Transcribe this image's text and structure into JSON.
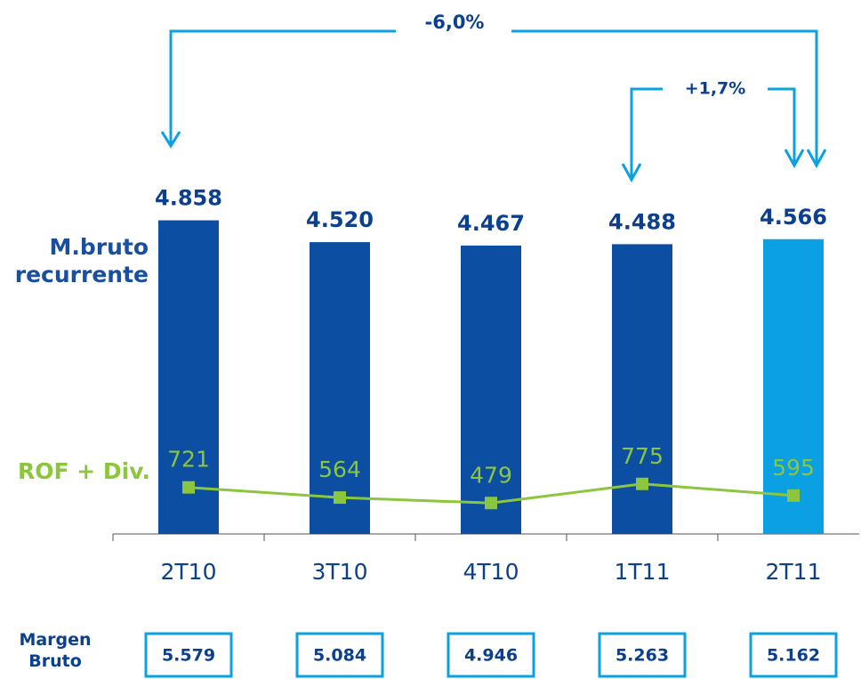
{
  "chart_data": {
    "type": "bar",
    "categories": [
      "2T10",
      "3T10",
      "4T10",
      "1T11",
      "2T11"
    ],
    "series": [
      {
        "name": "M.bruto recurrente",
        "type": "bar",
        "colors": [
          "#0b4ea2",
          "#0b4ea2",
          "#0b4ea2",
          "#0b4ea2",
          "#0aa0e2"
        ],
        "values": [
          4858,
          4520,
          4467,
          4488,
          4566
        ],
        "value_labels": [
          "4.858",
          "4.520",
          "4.467",
          "4.488",
          "4.566"
        ]
      },
      {
        "name": "ROF + Div.",
        "type": "line",
        "color": "#8cc63f",
        "values": [
          721,
          564,
          479,
          775,
          595
        ]
      }
    ],
    "ylim": [
      0,
      5500
    ],
    "annotations": [
      "-6,0%",
      "+1,7%"
    ],
    "totals": {
      "label": "Margen Bruto",
      "values": [
        5579,
        5084,
        4946,
        5263,
        5162
      ],
      "value_labels": [
        "5.579",
        "5.084",
        "4.946",
        "5.263",
        "5.162"
      ]
    }
  }
}
